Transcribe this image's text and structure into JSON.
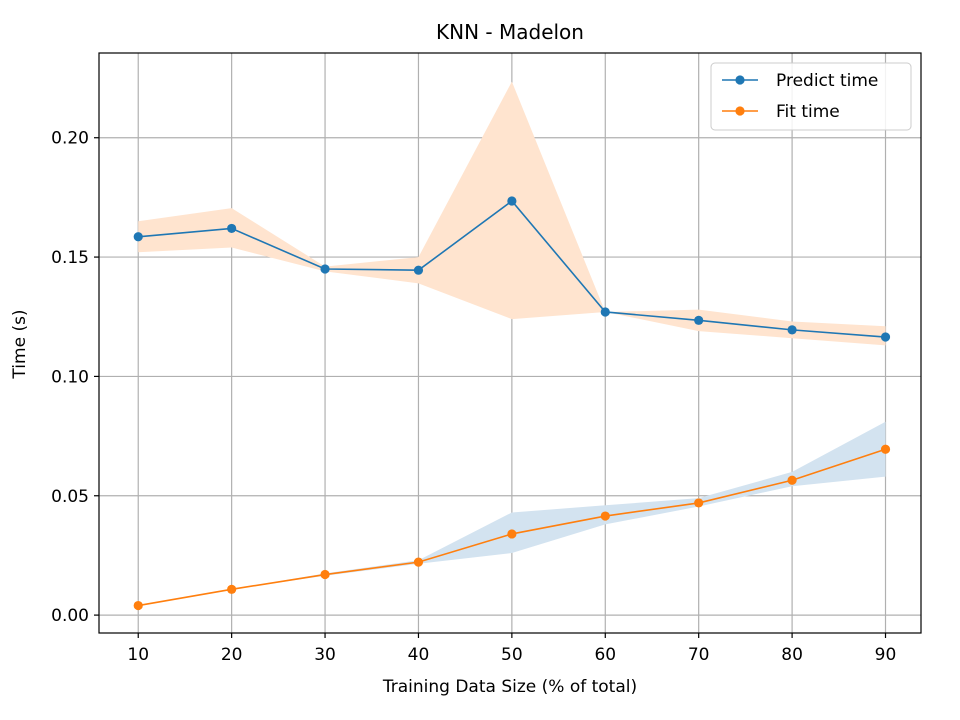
{
  "chart_data": {
    "type": "line",
    "title": "KNN - Madelon",
    "xlabel": "Training Data Size (% of total)",
    "ylabel": "Time (s)",
    "x": [
      10,
      20,
      30,
      40,
      50,
      60,
      70,
      80,
      90
    ],
    "xlim": [
      5.8,
      93.8
    ],
    "ylim": [
      -0.0075,
      0.2355
    ],
    "xticks": [
      "10",
      "20",
      "30",
      "40",
      "50",
      "60",
      "70",
      "80",
      "90"
    ],
    "xtick_values": [
      10,
      20,
      30,
      40,
      50,
      60,
      70,
      80,
      90
    ],
    "yticks": [
      "0.00",
      "0.05",
      "0.10",
      "0.15",
      "0.20"
    ],
    "ytick_values": [
      0.0,
      0.05,
      0.1,
      0.15,
      0.2
    ],
    "grid": true,
    "legend_position": "top-right",
    "series": [
      {
        "name": "Predict time",
        "color": "#1f77b4",
        "values": [
          0.1585,
          0.162,
          0.145,
          0.1445,
          0.1735,
          0.127,
          0.1235,
          0.1195,
          0.1165
        ],
        "band_color": "#ffe4cf",
        "band_lower": [
          0.152,
          0.154,
          0.144,
          0.139,
          0.124,
          0.127,
          0.119,
          0.116,
          0.113
        ],
        "band_upper": [
          0.165,
          0.1705,
          0.146,
          0.15,
          0.2235,
          0.127,
          0.128,
          0.123,
          0.121
        ]
      },
      {
        "name": "Fit time",
        "color": "#ff7f0e",
        "values": [
          0.004,
          0.0108,
          0.017,
          0.0222,
          0.034,
          0.0415,
          0.047,
          0.0565,
          0.0695
        ],
        "band_color": "#d3e3f0",
        "band_lower": [
          0.004,
          0.0108,
          0.0165,
          0.0215,
          0.026,
          0.038,
          0.0455,
          0.054,
          0.058
        ],
        "band_upper": [
          0.004,
          0.0108,
          0.0175,
          0.023,
          0.043,
          0.046,
          0.049,
          0.06,
          0.081
        ]
      }
    ]
  }
}
